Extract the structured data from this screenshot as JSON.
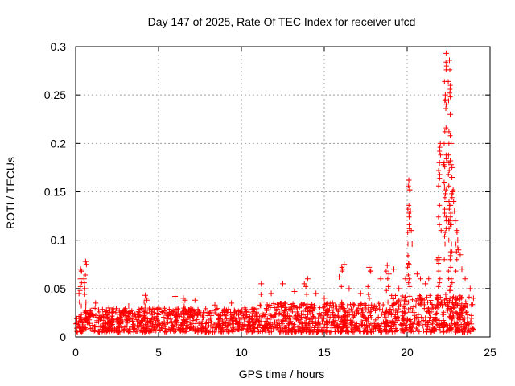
{
  "chart_data": {
    "type": "scatter",
    "title": "Day 147 of 2025, Rate Of TEC Index for receiver ufcd",
    "xlabel": "GPS time / hours",
    "ylabel": "ROTI / TECUs",
    "xlim": [
      0,
      25
    ],
    "ylim": [
      0,
      0.3
    ],
    "x_ticks": [
      0,
      5,
      10,
      15,
      20,
      25
    ],
    "y_ticks": [
      0,
      0.05,
      0.1,
      0.15,
      0.2,
      0.25,
      0.3
    ],
    "x_tick_labels": [
      "0",
      "5",
      "10",
      "15",
      "20",
      "25"
    ],
    "y_tick_labels": [
      "0",
      "0.05",
      "0.1",
      "0.15",
      "0.2",
      "0.25",
      "0.3"
    ],
    "grid": true,
    "marker": "+",
    "series": [
      {
        "name": "ROTI",
        "color": "#ff0000",
        "baseline_band": {
          "x_range": [
            0,
            24
          ],
          "y_range": [
            0.005,
            0.03
          ]
        },
        "points": [
          [
            0.2,
            0.045
          ],
          [
            0.3,
            0.07
          ],
          [
            0.35,
            0.068
          ],
          [
            0.5,
            0.06
          ],
          [
            0.6,
            0.078
          ],
          [
            0.65,
            0.075
          ],
          [
            0.55,
            0.05
          ],
          [
            1.2,
            0.035
          ],
          [
            2.0,
            0.03
          ],
          [
            3.2,
            0.032
          ],
          [
            4.2,
            0.043
          ],
          [
            4.3,
            0.038
          ],
          [
            5.0,
            0.03
          ],
          [
            6.0,
            0.042
          ],
          [
            6.5,
            0.04
          ],
          [
            6.6,
            0.038
          ],
          [
            7.2,
            0.038
          ],
          [
            8.4,
            0.033
          ],
          [
            9.4,
            0.035
          ],
          [
            10.2,
            0.03
          ],
          [
            11.2,
            0.055
          ],
          [
            11.8,
            0.045
          ],
          [
            12.5,
            0.055
          ],
          [
            13.2,
            0.047
          ],
          [
            13.8,
            0.055
          ],
          [
            14.0,
            0.06
          ],
          [
            14.5,
            0.045
          ],
          [
            15.0,
            0.04
          ],
          [
            15.5,
            0.035
          ],
          [
            15.9,
            0.062
          ],
          [
            16.1,
            0.07
          ],
          [
            16.2,
            0.075
          ],
          [
            16.5,
            0.05
          ],
          [
            17.2,
            0.045
          ],
          [
            17.7,
            0.072
          ],
          [
            17.8,
            0.068
          ],
          [
            18.4,
            0.06
          ],
          [
            18.8,
            0.074
          ],
          [
            18.9,
            0.065
          ],
          [
            19.2,
            0.07
          ],
          [
            19.5,
            0.05
          ],
          [
            19.9,
            0.06
          ],
          [
            20.1,
            0.162
          ],
          [
            20.15,
            0.152
          ],
          [
            20.2,
            0.13
          ],
          [
            20.25,
            0.11
          ],
          [
            20.3,
            0.096
          ],
          [
            20.1,
            0.075
          ],
          [
            20.6,
            0.065
          ],
          [
            20.8,
            0.06
          ],
          [
            21.1,
            0.055
          ],
          [
            21.3,
            0.06
          ],
          [
            21.8,
            0.08
          ],
          [
            21.9,
            0.082
          ],
          [
            21.95,
            0.18
          ],
          [
            22.0,
            0.2
          ],
          [
            22.05,
            0.11
          ],
          [
            22.2,
            0.178
          ],
          [
            22.3,
            0.245
          ],
          [
            22.35,
            0.293
          ],
          [
            22.3,
            0.25
          ],
          [
            22.25,
            0.155
          ],
          [
            22.4,
            0.14
          ],
          [
            22.5,
            0.12
          ],
          [
            22.55,
            0.286
          ],
          [
            22.6,
            0.23
          ],
          [
            22.65,
            0.2
          ],
          [
            22.6,
            0.182
          ],
          [
            22.65,
            0.178
          ],
          [
            22.7,
            0.175
          ],
          [
            22.7,
            0.165
          ],
          [
            22.75,
            0.15
          ],
          [
            22.8,
            0.14
          ],
          [
            22.85,
            0.13
          ],
          [
            22.9,
            0.12
          ],
          [
            23.0,
            0.11
          ],
          [
            23.05,
            0.1
          ],
          [
            23.1,
            0.09
          ],
          [
            23.2,
            0.085
          ],
          [
            23.3,
            0.07
          ],
          [
            23.5,
            0.06
          ],
          [
            23.8,
            0.05
          ],
          [
            24.0,
            0.04
          ]
        ]
      }
    ]
  }
}
